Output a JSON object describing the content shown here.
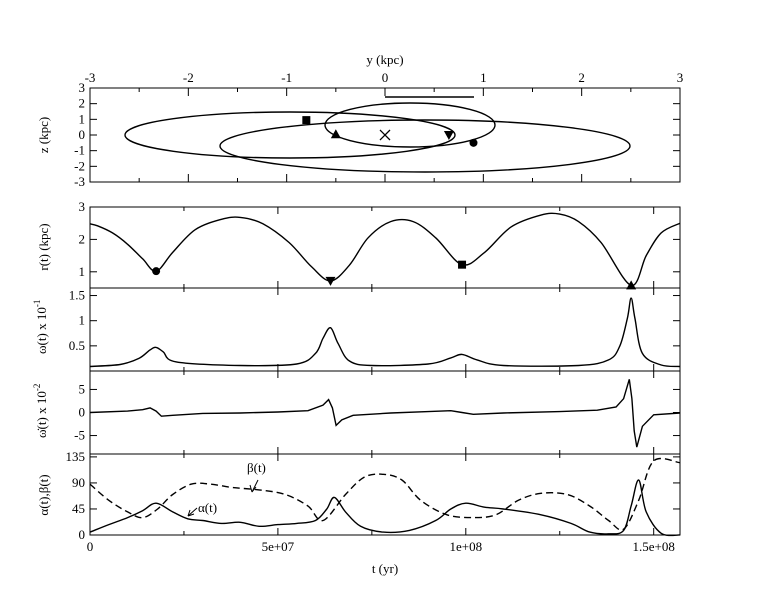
{
  "chart_data": [
    {
      "type": "line",
      "panel": "orbit",
      "top_xlabel": "y (kpc)",
      "ylabel": "z (kpc)",
      "xlim": [
        -3,
        3
      ],
      "ylim": [
        -3,
        3
      ],
      "x_ticks": [
        "-3",
        "-2",
        "-1",
        "0",
        "1",
        "2",
        "3"
      ],
      "y_ticks": [
        "3",
        "2",
        "1",
        "0",
        "-1",
        "-2",
        "-3"
      ],
      "center_marker": "x",
      "markers": [
        {
          "shape": "square",
          "x": -0.8,
          "y": 0.95
        },
        {
          "shape": "triangle-up",
          "x": -0.5,
          "y": 0.05
        },
        {
          "shape": "triangle-down",
          "x": 0.65,
          "y": 0.0
        },
        {
          "shape": "circle",
          "x": 0.9,
          "y": -0.5
        }
      ]
    },
    {
      "type": "line",
      "panel": "radius",
      "ylabel": "r(t) (kpc)",
      "ylim": [
        0.5,
        3
      ],
      "y_ticks": [
        "3",
        "2",
        "1"
      ],
      "series": [
        {
          "x": [
            0,
            2000000.0,
            6000000.0,
            10000000.0,
            14000000.0,
            17600000.0,
            22000000.0,
            28000000.0,
            35000000.0,
            40000000.0,
            46000000.0,
            53000000.0,
            59000000.0,
            64000000.0,
            69000000.0,
            74000000.0,
            80000000.0,
            86000000.0,
            92000000.0,
            99000000.0,
            105000000.0,
            112000000.0,
            120000000.0,
            125000000.0,
            130000000.0,
            136000000.0,
            144000000.0,
            148000000.0,
            152000000.0,
            157000000.0
          ],
          "y": [
            2.48,
            2.42,
            2.2,
            1.85,
            1.4,
            1.02,
            1.6,
            2.3,
            2.62,
            2.68,
            2.48,
            1.9,
            1.15,
            0.72,
            1.2,
            2.05,
            2.55,
            2.55,
            2.05,
            1.22,
            1.6,
            2.38,
            2.75,
            2.78,
            2.55,
            1.9,
            0.58,
            1.5,
            2.2,
            2.5
          ]
        }
      ],
      "markers": [
        {
          "shape": "circle",
          "x": 17600000.0,
          "y": 1.02
        },
        {
          "shape": "triangle-down",
          "x": 64000000.0,
          "y": 0.72
        },
        {
          "shape": "square",
          "x": 99000000.0,
          "y": 1.22
        },
        {
          "shape": "triangle-up",
          "x": 144000000.0,
          "y": 0.58
        }
      ]
    },
    {
      "type": "line",
      "panel": "omega",
      "ylabel": "ω(t) x 10",
      "ylabel_exp": "-1",
      "ylim": [
        0,
        1.65
      ],
      "y_ticks": [
        "1.5",
        "1",
        "0.5"
      ],
      "series": [
        {
          "x": [
            0,
            8000000.0,
            13000000.0,
            16000000.0,
            17600000.0,
            19500000.0,
            23000000.0,
            40000000.0,
            55000000.0,
            60000000.0,
            62000000.0,
            64000000.0,
            66000000.0,
            69000000.0,
            75000000.0,
            90000000.0,
            96000000.0,
            99000000.0,
            103000000.0,
            110000000.0,
            130000000.0,
            138000000.0,
            141000000.0,
            143000000.0,
            144000000.0,
            145000000.0,
            147000000.0,
            152000000.0,
            157000000.0
          ],
          "y": [
            0.09,
            0.13,
            0.25,
            0.42,
            0.47,
            0.38,
            0.18,
            0.11,
            0.14,
            0.35,
            0.65,
            0.86,
            0.55,
            0.2,
            0.11,
            0.14,
            0.26,
            0.33,
            0.22,
            0.11,
            0.11,
            0.22,
            0.5,
            1.05,
            1.45,
            1.05,
            0.35,
            0.12,
            0.09
          ]
        }
      ]
    },
    {
      "type": "line",
      "panel": "omega-dot",
      "ylabel": "ω̇(t) x 10",
      "ylabel_exp": "-2",
      "ylim": [
        -9,
        9
      ],
      "y_ticks": [
        "5",
        "0",
        "-5"
      ],
      "series": [
        {
          "x": [
            0,
            10000000.0,
            14000000.0,
            16000000.0,
            17600000.0,
            19000000.0,
            22000000.0,
            30000000.0,
            40000000.0,
            50000000.0,
            58000000.0,
            62000000.0,
            63500000.0,
            64500000.0,
            65500000.0,
            67000000.0,
            70000000.0,
            80000000.0,
            90000000.0,
            96000000.0,
            99000000.0,
            102000000.0,
            110000000.0,
            125000000.0,
            135000000.0,
            140000000.0,
            142000000.0,
            143500000.0,
            144200000.0,
            144800000.0,
            145500000.0,
            147000000.0,
            150000000.0,
            157000000.0
          ],
          "y": [
            0,
            0.3,
            0.6,
            1.0,
            0.3,
            -0.8,
            -0.6,
            -0.2,
            -0.1,
            0.1,
            0.4,
            1.6,
            2.8,
            1.0,
            -2.8,
            -1.6,
            -0.6,
            -0.1,
            0.2,
            0.4,
            0,
            -0.4,
            -0.1,
            0.2,
            0.5,
            1.2,
            3.0,
            7.2,
            3.0,
            -4.0,
            -7.5,
            -3.0,
            -0.5,
            -0.1
          ]
        }
      ]
    },
    {
      "type": "line",
      "panel": "angles",
      "ylabel": "α(t),β(t)",
      "xlabel": "t (yr)",
      "xlim": [
        0,
        157000000.0
      ],
      "ylim": [
        0,
        140
      ],
      "x_ticks": [
        "0",
        "5e+07",
        "1e+08",
        "1.5e+08"
      ],
      "y_ticks": [
        "135",
        "90",
        "45",
        "0"
      ],
      "series": [
        {
          "name": "α(t)",
          "x": [
            0,
            5000000.0,
            10000000.0,
            14000000.0,
            17600000.0,
            22000000.0,
            26000000.0,
            30000000.0,
            35000000.0,
            40000000.0,
            45000000.0,
            50000000.0,
            55000000.0,
            60000000.0,
            63000000.0,
            65000000.0,
            68000000.0,
            72000000.0,
            78000000.0,
            85000000.0,
            92000000.0,
            96000000.0,
            100000000.0,
            105000000.0,
            110000000.0,
            120000000.0,
            128000000.0,
            133000000.0,
            138000000.0,
            142000000.0,
            144000000.0,
            146000000.0,
            148000000.0,
            152000000.0,
            157000000.0
          ],
          "y": [
            5,
            18,
            30,
            42,
            55,
            40,
            28,
            25,
            20,
            22,
            15,
            18,
            20,
            25,
            45,
            65,
            40,
            15,
            5,
            8,
            25,
            45,
            55,
            48,
            45,
            35,
            20,
            5,
            2,
            8,
            50,
            95,
            40,
            3,
            0
          ]
        },
        {
          "name": "β(t)",
          "x": [
            0,
            5000000.0,
            10000000.0,
            14000000.0,
            18000000.0,
            22000000.0,
            27000000.0,
            32000000.0,
            38000000.0,
            45000000.0,
            52000000.0,
            58000000.0,
            62000000.0,
            68000000.0,
            73000000.0,
            78000000.0,
            83000000.0,
            88000000.0,
            95000000.0,
            102000000.0,
            108000000.0,
            114000000.0,
            120000000.0,
            127000000.0,
            133000000.0,
            138000000.0,
            142000000.0,
            146000000.0,
            150000000.0,
            157000000.0
          ],
          "y": [
            88,
            60,
            40,
            30,
            45,
            70,
            88,
            88,
            82,
            78,
            70,
            50,
            25,
            70,
            100,
            105,
            95,
            60,
            35,
            30,
            35,
            60,
            72,
            70,
            50,
            25,
            10,
            60,
            128,
            125
          ]
        }
      ]
    }
  ]
}
